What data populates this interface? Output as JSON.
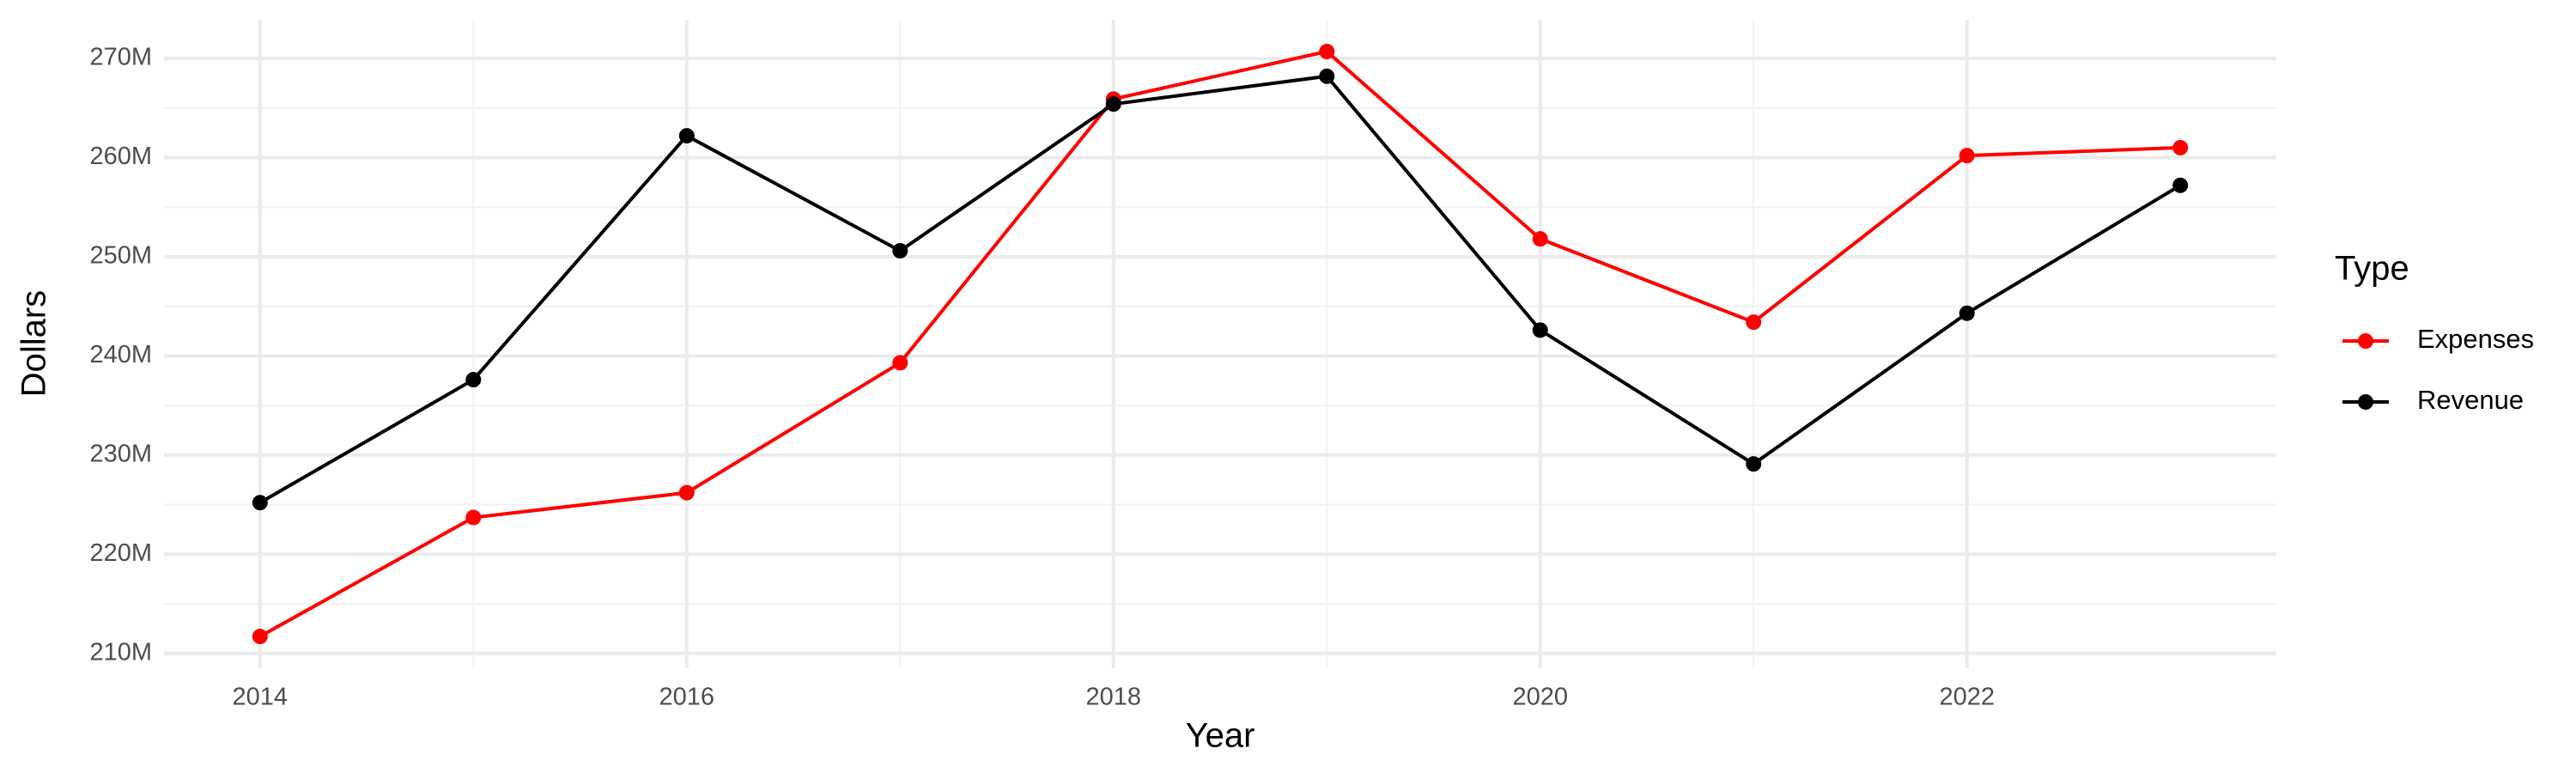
{
  "chart_data": {
    "type": "line",
    "x_label": "Year",
    "y_label": "Dollars",
    "legend_title": "Type",
    "legend_position": "right",
    "grid": true,
    "minor_grid": true,
    "x": [
      2014,
      2015,
      2016,
      2017,
      2018,
      2019,
      2020,
      2021,
      2022,
      2023
    ],
    "series": [
      {
        "name": "Expenses",
        "color": "#ff0000",
        "values": [
          211700000,
          223700000,
          226200000,
          239300000,
          265900000,
          270700000,
          251800000,
          243400000,
          260200000,
          261000000
        ]
      },
      {
        "name": "Revenue",
        "color": "#000000",
        "values": [
          225200000,
          237600000,
          262200000,
          250600000,
          265400000,
          268200000,
          242600000,
          229100000,
          244300000,
          257200000
        ]
      }
    ],
    "xlim": [
      2013.55,
      2023.45
    ],
    "xticks": [
      2014,
      2016,
      2018,
      2020,
      2022
    ],
    "ylim": [
      208500000,
      273900000
    ],
    "yticks": [
      {
        "value": 210000000,
        "label": "210M"
      },
      {
        "value": 220000000,
        "label": "220M"
      },
      {
        "value": 230000000,
        "label": "230M"
      },
      {
        "value": 240000000,
        "label": "240M"
      },
      {
        "value": 250000000,
        "label": "250M"
      },
      {
        "value": 260000000,
        "label": "260M"
      },
      {
        "value": 270000000,
        "label": "270M"
      }
    ]
  }
}
